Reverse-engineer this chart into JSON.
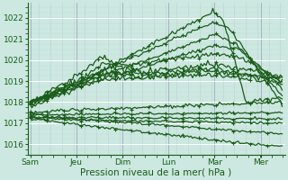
{
  "title": "",
  "xlabel": "Pression niveau de la mer( hPa )",
  "ylim": [
    1015.5,
    1022.7
  ],
  "yticks": [
    1016,
    1017,
    1018,
    1019,
    1020,
    1021,
    1022
  ],
  "xtick_labels": [
    "Sam",
    "Jeu",
    "Dim",
    "Lun",
    "Mar",
    "Mer"
  ],
  "xtick_positions": [
    0,
    0.83,
    1.67,
    2.5,
    3.33,
    4.17
  ],
  "xlim": [
    -0.05,
    4.6
  ],
  "bg_color": "#cce8e0",
  "line_color": "#1a5c1a",
  "figsize": [
    3.2,
    2.0
  ],
  "dpi": 100,
  "n_pts": 150,
  "n_days": 4.55,
  "seed": 12
}
